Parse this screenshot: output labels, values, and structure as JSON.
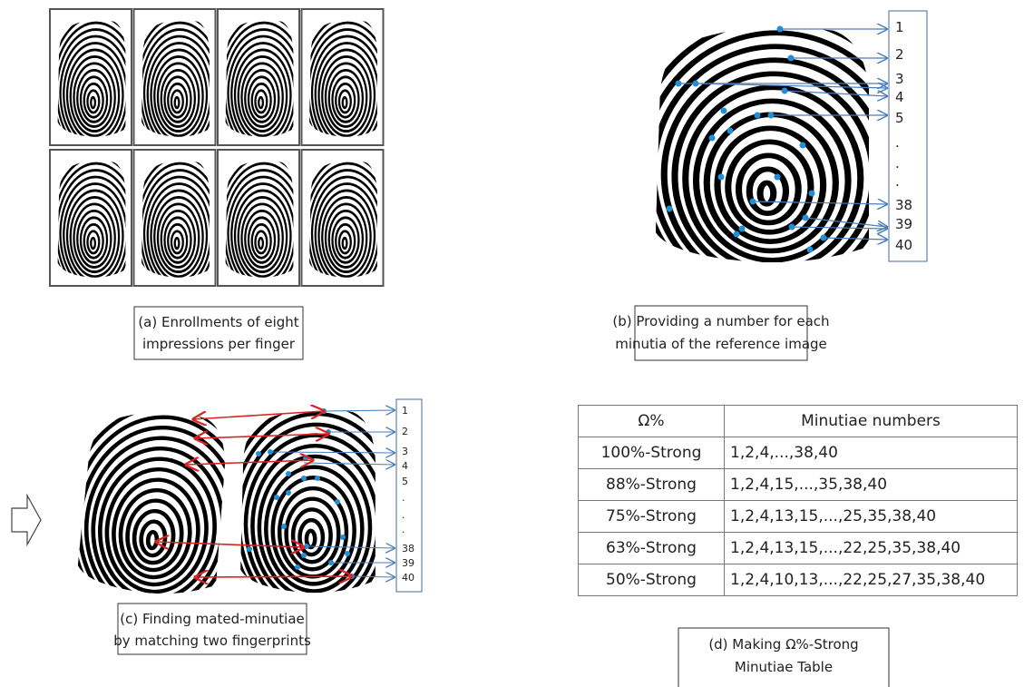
{
  "panel_a": {
    "caption": [
      "(a) Enrollments  of eight",
      "impressions per finger"
    ]
  },
  "panel_b": {
    "caption": [
      "(b) Providing  a number for each",
      "minutia of the reference image"
    ],
    "numbers": [
      "1",
      "2",
      "3",
      "4",
      "5",
      ".",
      ".",
      ".",
      "38",
      "39",
      "40"
    ]
  },
  "panel_c": {
    "caption": [
      "(c) Finding mated-minutiae",
      "by matching two fingerprints"
    ],
    "numbers": [
      "1",
      "2",
      "3",
      "4",
      "5",
      ".",
      ".",
      ".",
      "38",
      "39",
      "40"
    ]
  },
  "panel_d": {
    "caption": [
      "(d) Making Ω%-Strong",
      "Minutiae Table"
    ],
    "table": {
      "header": [
        "Ω%",
        "Minutiae numbers"
      ],
      "rows": [
        [
          "100%-Strong",
          "1,2,4,...,38,40"
        ],
        [
          "88%-Strong",
          "1,2,4,15,...,35,38,40"
        ],
        [
          "75%-Strong",
          "1,2,4,13,15,...,25,35,38,40"
        ],
        [
          "63%-Strong",
          "1,2,4,13,15,...,22,25,35,38,40"
        ],
        [
          "50%-Strong",
          "1,2,4,10,13,...,22,25,27,35,38,40"
        ]
      ]
    }
  }
}
